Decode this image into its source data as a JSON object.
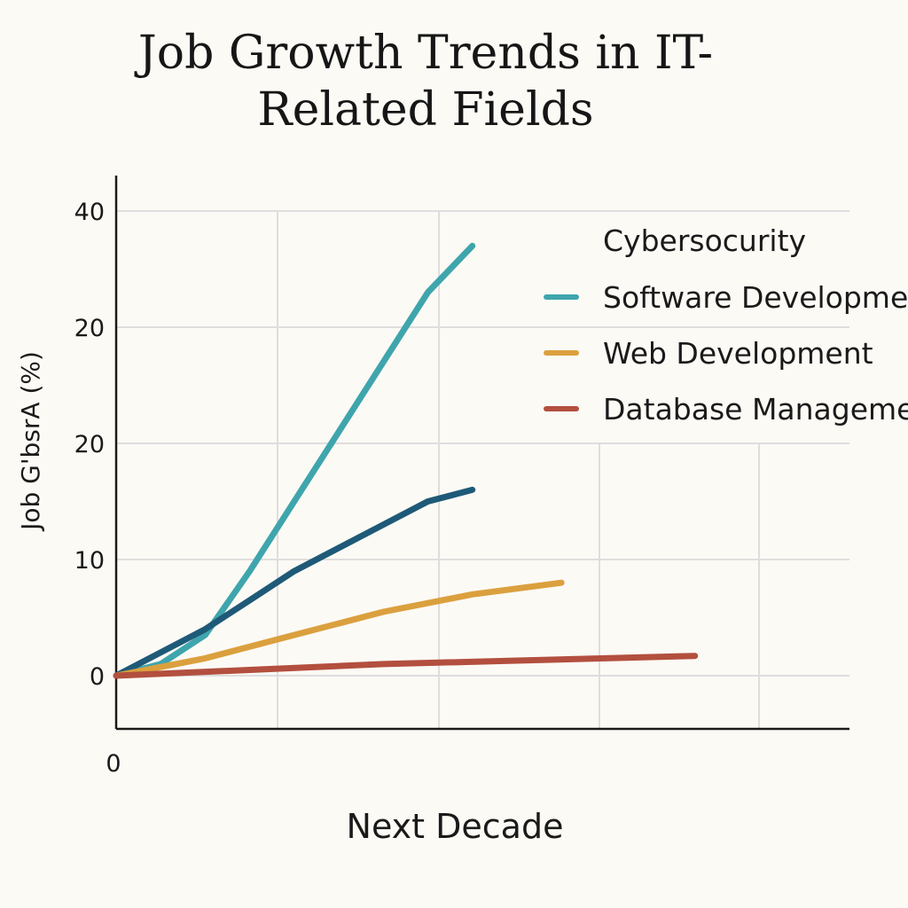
{
  "chart_data": {
    "type": "line",
    "title": "Job Growth Trends in IT-Related Fields",
    "xlabel": "Next Decade",
    "ylabel": "Job G'bѕrA (%)",
    "x_tick_labels": [
      "0"
    ],
    "y_tick_labels": [
      "0",
      "10",
      "20",
      "20",
      "40"
    ],
    "ylim": [
      0,
      40
    ],
    "grid": true,
    "legend_position": "top-right",
    "legend_labels": [
      "Cybersocurity",
      "Software Developmen",
      "Web Development",
      "Database Managemer"
    ],
    "series": [
      {
        "color": "#3fa5ad",
        "values": [
          [
            0,
            0
          ],
          [
            1,
            1
          ],
          [
            2,
            3.5
          ],
          [
            3,
            9
          ],
          [
            4,
            15
          ],
          [
            5,
            21
          ],
          [
            6,
            27
          ],
          [
            7,
            33
          ],
          [
            8,
            37
          ]
        ]
      },
      {
        "color": "#1e5a78",
        "values": [
          [
            0,
            0
          ],
          [
            1,
            2
          ],
          [
            2,
            4
          ],
          [
            3,
            6.5
          ],
          [
            4,
            9
          ],
          [
            5,
            11
          ],
          [
            6,
            13
          ],
          [
            7,
            15
          ],
          [
            8,
            16
          ]
        ]
      },
      {
        "color": "#dba03e",
        "values": [
          [
            0,
            0
          ],
          [
            2,
            1.5
          ],
          [
            4,
            3.5
          ],
          [
            6,
            5.5
          ],
          [
            8,
            7
          ],
          [
            10,
            8
          ]
        ]
      },
      {
        "color": "#b34f3e",
        "values": [
          [
            0,
            0
          ],
          [
            3,
            0.5
          ],
          [
            6,
            1
          ],
          [
            9,
            1.3
          ],
          [
            13,
            1.7
          ]
        ]
      }
    ],
    "x_range": [
      0,
      14
    ]
  }
}
